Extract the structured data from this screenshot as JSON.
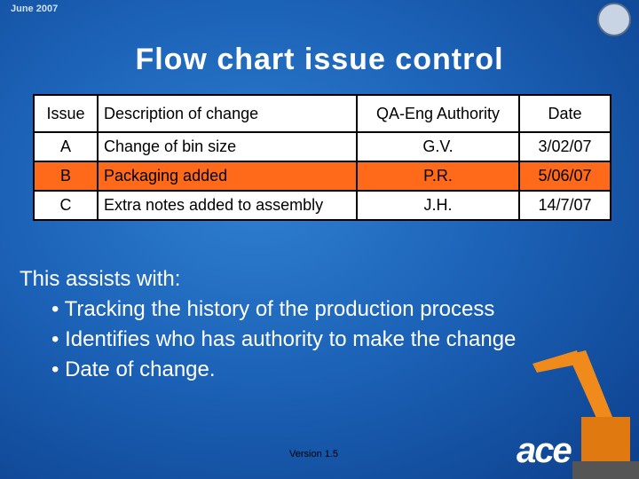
{
  "header": {
    "date": "June 2007",
    "title": "Flow chart issue control"
  },
  "table": {
    "columns": [
      "Issue",
      "Description of change",
      "QA-Eng Authority",
      "Date"
    ],
    "rows": [
      [
        "A",
        "Change of bin size",
        "G.V.",
        "3/02/07"
      ],
      [
        "B",
        "Packaging added",
        "P.R.",
        "5/06/07"
      ],
      [
        "C",
        "Extra notes added to assembly",
        "J.H.",
        "14/7/07"
      ]
    ]
  },
  "body": {
    "intro": "This assists with:",
    "bullets": [
      "Tracking the history of the production process",
      "Identifies who has authority to make the change",
      "Date of change."
    ]
  },
  "footer": {
    "version": "Version 1.5",
    "logo": "ace"
  }
}
